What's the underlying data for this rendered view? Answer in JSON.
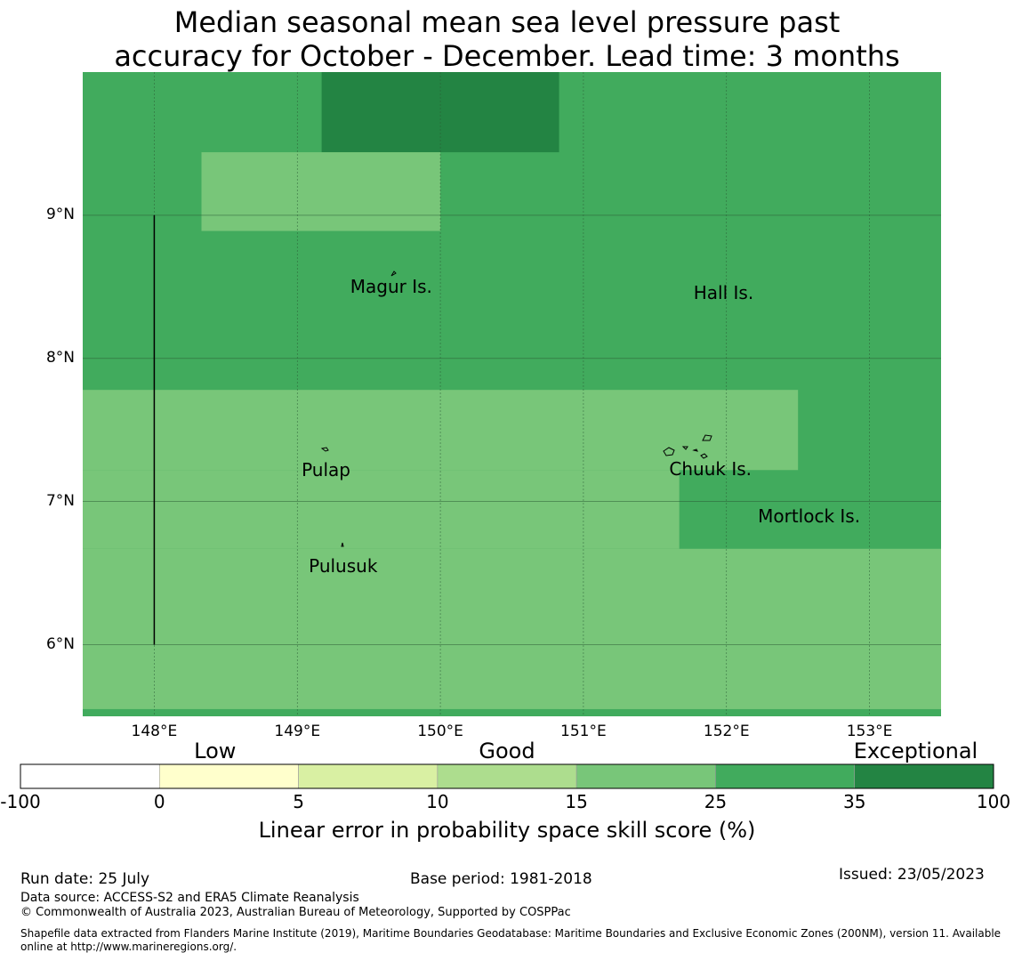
{
  "title": {
    "line1": "Median seasonal mean sea level pressure past",
    "line2": "accuracy for October - December. Lead time: 3 months"
  },
  "map": {
    "lon_range": [
      147.5,
      153.5
    ],
    "lat_range": [
      5.5,
      10.0
    ],
    "lon_ticks": [
      {
        "value": 148,
        "label": "148°E"
      },
      {
        "value": 149,
        "label": "149°E"
      },
      {
        "value": 150,
        "label": "150°E"
      },
      {
        "value": 151,
        "label": "151°E"
      },
      {
        "value": 152,
        "label": "152°E"
      },
      {
        "value": 153,
        "label": "153°E"
      }
    ],
    "lat_ticks": [
      {
        "value": 9,
        "label": "9°N"
      },
      {
        "value": 8,
        "label": "8°N"
      },
      {
        "value": 7,
        "label": "7°N"
      },
      {
        "value": 6,
        "label": "6°N"
      }
    ],
    "grid": true,
    "background_class": "25-35",
    "cells": [
      {
        "lon": [
          149.17,
          150.83
        ],
        "lat": [
          9.44,
          10.0
        ],
        "class": "35-100"
      },
      {
        "lon": [
          148.33,
          150.0
        ],
        "lat": [
          8.89,
          9.44
        ],
        "class": "15-25"
      },
      {
        "lon": [
          147.5,
          152.5
        ],
        "lat": [
          7.22,
          7.78
        ],
        "class": "15-25"
      },
      {
        "lon": [
          147.5,
          151.67
        ],
        "lat": [
          6.67,
          7.22
        ],
        "class": "15-25"
      },
      {
        "lon": [
          147.5,
          153.5
        ],
        "lat": [
          5.55,
          6.67
        ],
        "class": "15-25"
      },
      {
        "lon": [
          147.5,
          150.83
        ],
        "lat": [
          5.5,
          5.55
        ],
        "class": "25-35"
      }
    ],
    "boundary_line": {
      "lon": 148.0,
      "lat": [
        6.0,
        9.0
      ]
    },
    "places": [
      {
        "name": "Magur Is.",
        "lon": 149.37,
        "lat": 8.5
      },
      {
        "name": "Hall Is.",
        "lon": 151.77,
        "lat": 8.46
      },
      {
        "name": "Pulap",
        "lon": 149.03,
        "lat": 7.22
      },
      {
        "name": "Chuuk Is.",
        "lon": 151.6,
        "lat": 7.23
      },
      {
        "name": "Mortlock Is.",
        "lon": 152.22,
        "lat": 6.9
      },
      {
        "name": "Pulusuk",
        "lon": 149.08,
        "lat": 6.55
      }
    ]
  },
  "colorbar": {
    "categories": [
      {
        "label": "Low",
        "position": 0.2
      },
      {
        "label": "Good",
        "position": 0.5
      },
      {
        "label": "Exceptional",
        "position": 0.92
      }
    ],
    "bins": [
      {
        "from": -100,
        "to": 0,
        "color": "#ffffff"
      },
      {
        "from": 0,
        "to": 5,
        "color": "#ffffcc"
      },
      {
        "from": 5,
        "to": 10,
        "color": "#d9f0a3"
      },
      {
        "from": 10,
        "to": 15,
        "color": "#addd8e"
      },
      {
        "from": 15,
        "to": 25,
        "color": "#78c679"
      },
      {
        "from": 25,
        "to": 35,
        "color": "#41ab5d"
      },
      {
        "from": 35,
        "to": 100,
        "color": "#238443"
      }
    ],
    "tick_labels": [
      "-100",
      "0",
      "5",
      "10",
      "15",
      "25",
      "35",
      "100"
    ],
    "title": "Linear error in probability space skill score (%)"
  },
  "footer": {
    "run_date": "Run date: 25 July",
    "base_period": "Base period: 1981-2018",
    "issued": "Issued: 23/05/2023",
    "data_source": "Data source: ACCESS-S2 and ERA5 Climate Reanalysis",
    "copyright": "© Commonwealth of Australia 2023, Australian Bureau of Meteorology, Supported by COSPPac",
    "shapefile_line1": "Shapefile data extracted from Flanders Marine Institute (2019), Maritime Boundaries Geodatabase: Maritime Boundaries and Exclusive Economic Zones (200NM), version 11. Available",
    "shapefile_line2": "online at http://www.marineregions.org/."
  }
}
